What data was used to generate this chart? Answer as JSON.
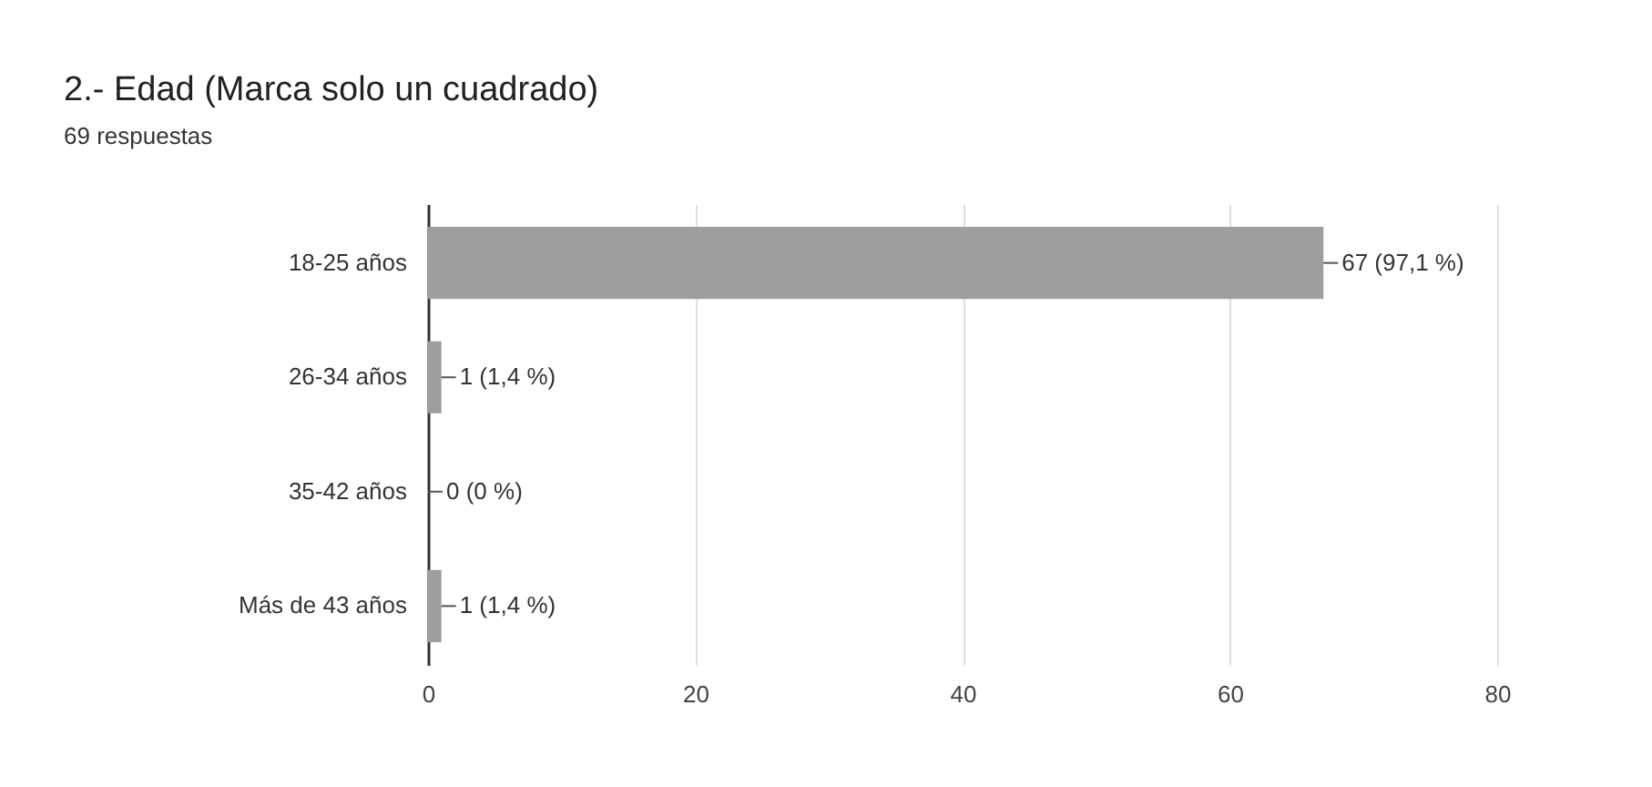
{
  "chart_data": {
    "type": "bar",
    "orientation": "horizontal",
    "title": "2.- Edad (Marca solo un cuadrado)",
    "subtitle": "69 respuestas",
    "categories": [
      "18-25 años",
      "26-34 años",
      "35-42 años",
      "Más de 43 años"
    ],
    "values": [
      67,
      1,
      0,
      1
    ],
    "value_labels": [
      "67 (97,1 %)",
      "1 (1,4 %)",
      "0 (0 %)",
      "1 (1,4 %)"
    ],
    "color": "#9e9e9e",
    "xlim": [
      0,
      80
    ],
    "xticks": [
      0,
      20,
      40,
      60,
      80
    ],
    "grid": "x"
  }
}
